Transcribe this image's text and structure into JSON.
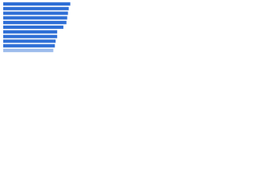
{
  "chart_data": {
    "type": "bar",
    "orientation": "horizontal",
    "categories": [
      null,
      null,
      null,
      null,
      null,
      null,
      null,
      null,
      null,
      null,
      null
    ],
    "values": [
      87,
      85,
      84,
      83,
      82,
      78,
      70,
      70,
      68,
      67,
      65
    ],
    "colors": [
      "#2f6fd6",
      "#2f6fd6",
      "#2f6fd6",
      "#2f6fd6",
      "#2f6fd6",
      "#2f6fd6",
      "#2f6fd6",
      "#2f6fd6",
      "#2f6fd6",
      "#2f6fd6",
      "#9dbcec"
    ],
    "xlim": [
      0,
      100
    ]
  }
}
